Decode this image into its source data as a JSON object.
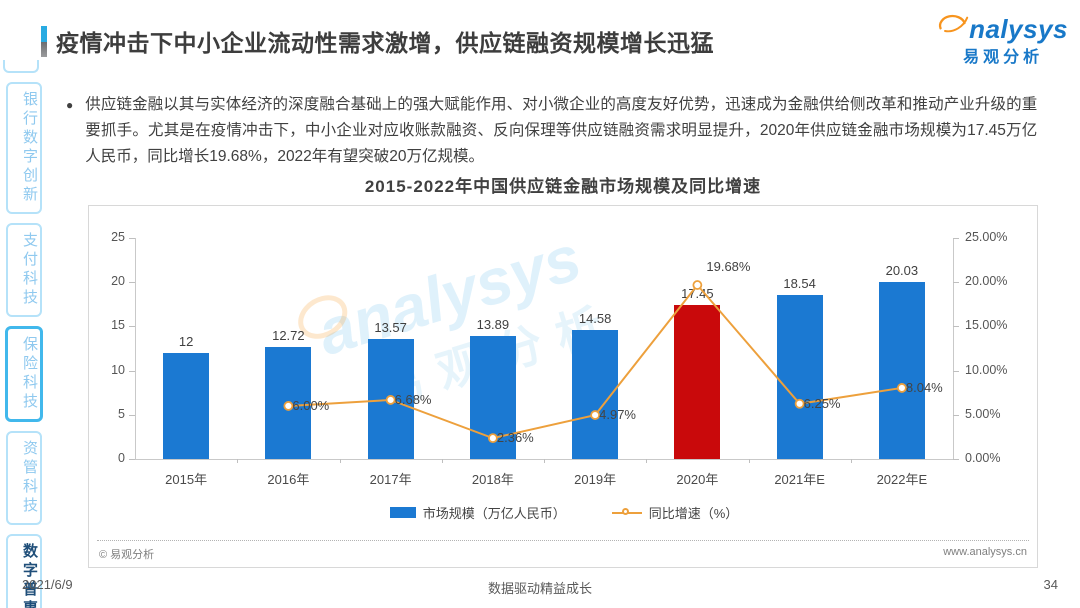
{
  "header": {
    "title": "疫情冲击下中小企业流动性需求激增，供应链融资规模增长迅猛",
    "logo": {
      "brand_letters": "nalysys",
      "brand_cn": "易观分析"
    }
  },
  "sidebar": {
    "items": [
      {
        "key": "banking-digital-innovation",
        "label": "银行数字创新",
        "active": false,
        "highlighted": false
      },
      {
        "key": "payment-tech",
        "label": "支付科技",
        "active": false,
        "highlighted": false
      },
      {
        "key": "insurance-tech",
        "label": "保险科技",
        "active": false,
        "highlighted": true
      },
      {
        "key": "asset-management-tech",
        "label": "资管科技",
        "active": false,
        "highlighted": false
      },
      {
        "key": "digital-inclusion",
        "label": "数字普惠",
        "active": true,
        "highlighted": false
      }
    ]
  },
  "summary": {
    "bullet_text": "供应链金融以其与实体经济的深度融合基础上的强大赋能作用、对小微企业的高度友好优势，迅速成为金融供给侧改革和推动产业升级的重要抓手。尤其是在疫情冲击下，中小企业对应收账款融资、反向保理等供应链融资需求明显提升，2020年供应链金融市场规模为17.45万亿人民币，同比增长19.68%，2022年有望突破20万亿规模。"
  },
  "chart_data": {
    "type": "bar+line",
    "title": "2015-2022年中国供应链金融市场规模及同比增速",
    "categories": [
      "2015年",
      "2016年",
      "2017年",
      "2018年",
      "2019年",
      "2020年",
      "2021年E",
      "2022年E"
    ],
    "series": [
      {
        "name": "市场规模（万亿人民币）",
        "type": "bar",
        "values": [
          12,
          12.72,
          13.57,
          13.89,
          14.58,
          17.45,
          18.54,
          20.03
        ],
        "value_labels": [
          "12",
          "12.72",
          "13.57",
          "13.89",
          "14.58",
          "17.45",
          "18.54",
          "20.03"
        ]
      },
      {
        "name": "同比增速（%）",
        "type": "line",
        "values": [
          null,
          6.0,
          6.68,
          2.36,
          4.97,
          19.68,
          6.25,
          8.04
        ],
        "value_labels": [
          null,
          "6.00%",
          "6.68%",
          "2.36%",
          "4.97%",
          "19.68%",
          "6.25%",
          "8.04%"
        ]
      }
    ],
    "highlight_index": 5,
    "left_axis": {
      "min": 0,
      "max": 25,
      "tick_labels": [
        "25",
        "20",
        "15",
        "10",
        "5",
        "0"
      ]
    },
    "right_axis": {
      "min": 0,
      "max": 25,
      "tick_labels": [
        "25.00%",
        "20.00%",
        "15.00%",
        "10.00%",
        "5.00%",
        "0.00%"
      ]
    },
    "colors": {
      "bar": "#1b79d2",
      "bar_highlight": "#c9090b",
      "line": "#eda03c"
    },
    "legend_position": "bottom",
    "grid": false
  },
  "chart_card": {
    "copyright": "© 易观分析",
    "website": "www.analysys.cn"
  },
  "watermark": {
    "en": "analysys",
    "cn": "易观分析"
  },
  "page_footer": {
    "date": "2021/6/9",
    "slogan": "数据驱动精益成长",
    "page_number": "34"
  }
}
